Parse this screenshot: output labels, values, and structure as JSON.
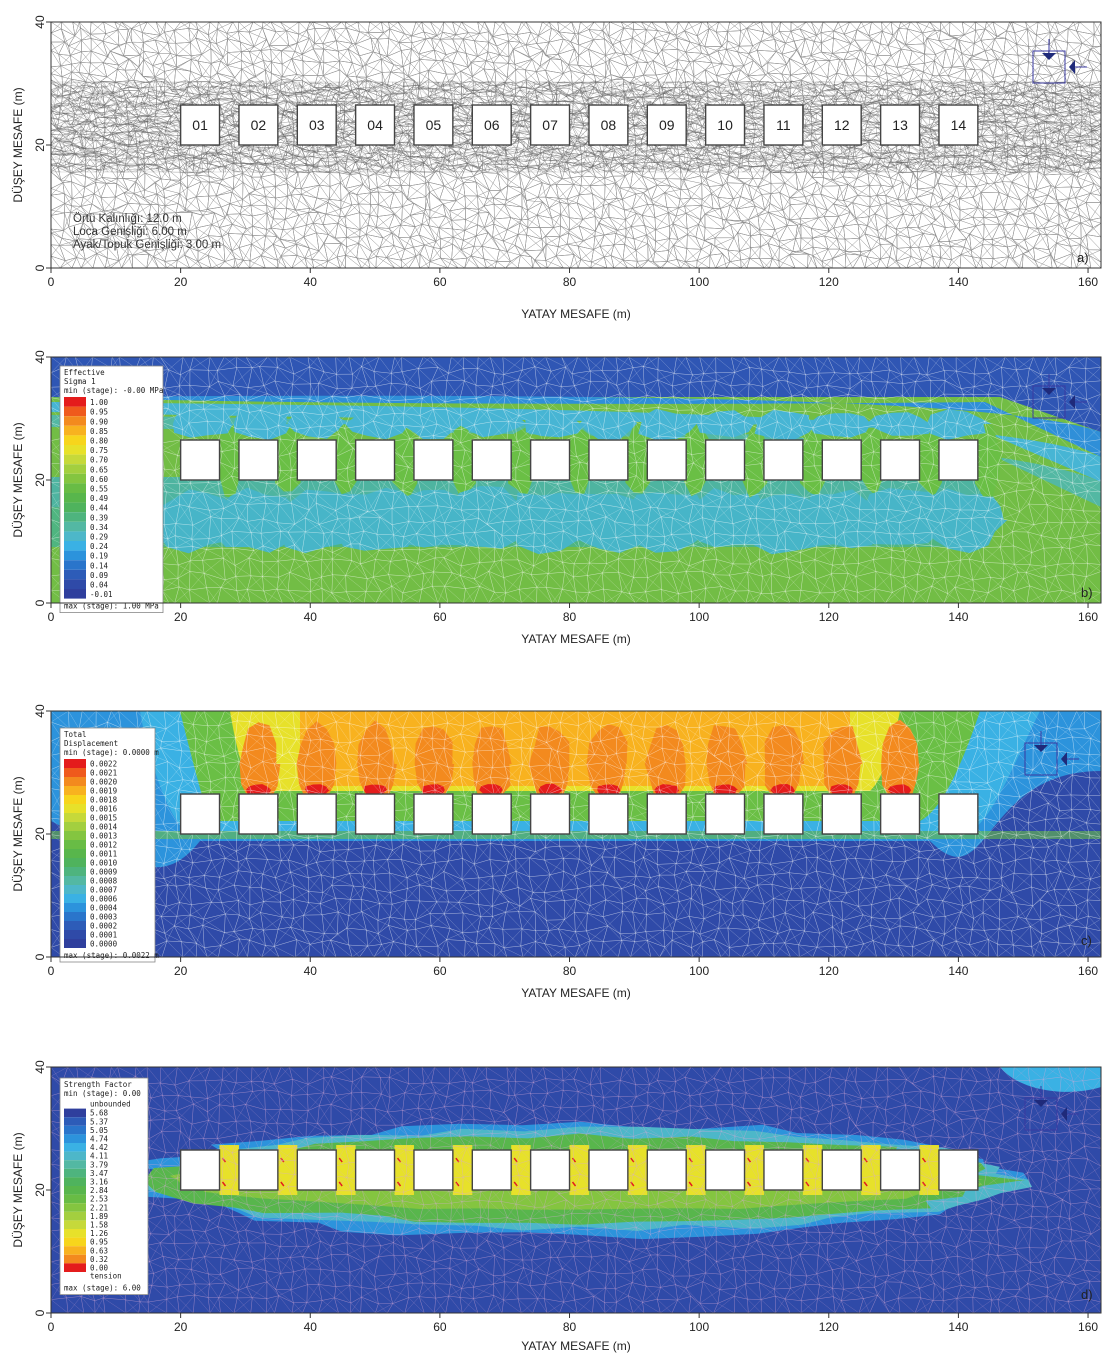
{
  "axes": {
    "xlabel": "YATAY MESAFE (m)",
    "ylabel": "DÜŞEY MESAFE (m)",
    "x_ticks": [
      "0",
      "20",
      "40",
      "60",
      "80",
      "100",
      "120",
      "140",
      "160"
    ],
    "y_ticks": [
      "0",
      "20",
      "40"
    ],
    "xlim": [
      0,
      162
    ],
    "ylim": [
      0,
      40
    ]
  },
  "rooms": {
    "labels": [
      "01",
      "02",
      "03",
      "04",
      "05",
      "06",
      "07",
      "08",
      "09",
      "10",
      "11",
      "12",
      "13",
      "14"
    ],
    "x_start_m": [
      20,
      29,
      38,
      47,
      56,
      65,
      74,
      83,
      92,
      101,
      110,
      119,
      128,
      137
    ],
    "width_m": 6,
    "y_bottom_m": 20,
    "y_top_m": 26.5
  },
  "panels": [
    {
      "id": "a",
      "letter": "a)",
      "type": "mesh",
      "notes": [
        "Örtü Kalınlığı: 12.0 m",
        "Loca Genişliği: 6.00 m",
        "Ayak/Topuk Genişliği: 3.00 m"
      ]
    },
    {
      "id": "b",
      "letter": "b)",
      "type": "contour",
      "legend_title": [
        "Effective",
        "Sigma 1"
      ],
      "legend_min": "min (stage): -0.00 MPa",
      "legend_max": "max (stage): 1.00 MPa",
      "legend_values": [
        "1.00",
        "0.95",
        "0.90",
        "0.85",
        "0.80",
        "0.75",
        "0.70",
        "0.65",
        "0.60",
        "0.55",
        "0.49",
        "0.44",
        "0.39",
        "0.34",
        "0.29",
        "0.24",
        "0.19",
        "0.14",
        "0.09",
        "0.04",
        "-0.01"
      ],
      "legend_colors": [
        "#e41c1c",
        "#ef5a1c",
        "#f38a1e",
        "#f8b21f",
        "#f7d51c",
        "#e7e12a",
        "#c6d93a",
        "#a3cf3f",
        "#84c540",
        "#68bc45",
        "#58b64c",
        "#4fb35d",
        "#4eb47e",
        "#53b8a3",
        "#4db7c9",
        "#3ab1e4",
        "#2c93dc",
        "#2a75cb",
        "#2d5cb8",
        "#2f4aa8",
        "#2f3f9d"
      ]
    },
    {
      "id": "c",
      "letter": "c)",
      "type": "contour",
      "legend_title": [
        "Total",
        "Displacement"
      ],
      "legend_min": "min (stage): 0.0000 m",
      "legend_max": "max (stage): 0.0022 m",
      "legend_values": [
        "0.0022",
        "0.0021",
        "0.0020",
        "0.0019",
        "0.0018",
        "0.0016",
        "0.0015",
        "0.0014",
        "0.0013",
        "0.0012",
        "0.0011",
        "0.0010",
        "0.0009",
        "0.0008",
        "0.0007",
        "0.0006",
        "0.0004",
        "0.0003",
        "0.0002",
        "0.0001",
        "0.0000"
      ],
      "legend_colors": [
        "#e41c1c",
        "#ef5a1c",
        "#f38a1e",
        "#f8b21f",
        "#f7d51c",
        "#e7e12a",
        "#c6d93a",
        "#a3cf3f",
        "#84c540",
        "#68bc45",
        "#58b64c",
        "#4fb35d",
        "#4eb47e",
        "#53b8a3",
        "#4db7c9",
        "#3ab1e4",
        "#2c93dc",
        "#2a75cb",
        "#2d5cb8",
        "#2f4aa8",
        "#2f3f9d"
      ]
    },
    {
      "id": "d",
      "letter": "d)",
      "type": "contour",
      "legend_title": [
        "Strength Factor"
      ],
      "legend_min": "min (stage): 0.00",
      "legend_max": "max (stage): 6.00",
      "legend_top": "unbounded",
      "legend_bottom": "tension",
      "legend_values": [
        "5.68",
        "5.37",
        "5.05",
        "4.74",
        "4.42",
        "4.11",
        "3.79",
        "3.47",
        "3.16",
        "2.84",
        "2.53",
        "2.21",
        "1.89",
        "1.58",
        "1.26",
        "0.95",
        "0.63",
        "0.32",
        "0.00"
      ],
      "legend_colors": [
        "#2f3f9d",
        "#2d5cb8",
        "#2a75cb",
        "#2c93dc",
        "#3ab1e4",
        "#4db7c9",
        "#53b8a3",
        "#4eb47e",
        "#4fb35d",
        "#58b64c",
        "#68bc45",
        "#84c540",
        "#a3cf3f",
        "#c6d93a",
        "#e7e12a",
        "#f7d51c",
        "#f8b21f",
        "#f38a1e",
        "#e41c1c"
      ]
    }
  ]
}
